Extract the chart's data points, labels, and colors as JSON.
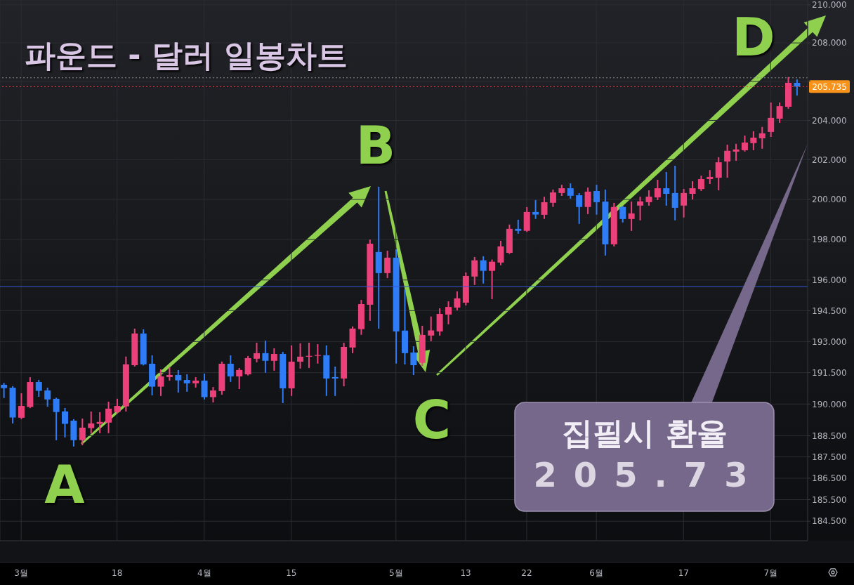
{
  "chart_data": {
    "type": "candlestick",
    "title": "파운드 - 달러 일봉차트",
    "categories": [
      null,
      null,
      "3월",
      null,
      null,
      null,
      null,
      null,
      null,
      null,
      null,
      null,
      null,
      "18",
      null,
      null,
      null,
      null,
      null,
      null,
      null,
      null,
      null,
      "4월",
      null,
      null,
      null,
      null,
      null,
      null,
      null,
      null,
      null,
      "15",
      null,
      null,
      null,
      null,
      null,
      null,
      null,
      null,
      null,
      null,
      null,
      "5월",
      null,
      null,
      null,
      null,
      null,
      null,
      null,
      "13",
      null,
      null,
      null,
      null,
      null,
      null,
      "22",
      null,
      null,
      null,
      null,
      null,
      null,
      null,
      "6월",
      null,
      null,
      null,
      null,
      null,
      null,
      null,
      null,
      null,
      "17",
      null,
      null,
      null,
      null,
      null,
      null,
      null,
      null,
      null,
      "7월",
      null,
      null,
      null
    ],
    "ohlc": [
      [
        190.92,
        190.98,
        190.32,
        190.76
      ],
      [
        190.78,
        190.82,
        189.11,
        189.36
      ],
      [
        189.35,
        190.48,
        189.32,
        189.91
      ],
      [
        189.86,
        191.25,
        189.84,
        191.05
      ],
      [
        191.05,
        191.12,
        190.38,
        190.63
      ],
      [
        190.65,
        190.75,
        189.91,
        190.22
      ],
      [
        190.25,
        190.27,
        188.32,
        189.62
      ],
      [
        189.65,
        189.78,
        188.45,
        189.06
      ],
      [
        189.21,
        189.25,
        188.02,
        188.29
      ],
      [
        188.29,
        189.28,
        188.08,
        188.88
      ],
      [
        188.86,
        189.61,
        188.63,
        189.08
      ],
      [
        189.06,
        189.58,
        188.65,
        189.15
      ],
      [
        189.12,
        190.08,
        188.65,
        189.78
      ],
      [
        189.62,
        190.22,
        189.59,
        189.91
      ],
      [
        189.89,
        192.24,
        189.68,
        191.9
      ],
      [
        191.86,
        193.59,
        191.83,
        193.39
      ],
      [
        193.39,
        193.56,
        191.88,
        191.9
      ],
      [
        191.93,
        192.3,
        190.45,
        190.83
      ],
      [
        190.83,
        191.63,
        190.42,
        191.32
      ],
      [
        191.29,
        191.73,
        191.15,
        191.39
      ],
      [
        191.39,
        191.59,
        190.58,
        191.13
      ],
      [
        191.15,
        191.39,
        190.62,
        190.99
      ],
      [
        190.99,
        191.25,
        190.82,
        191.12
      ],
      [
        191.12,
        191.42,
        190.25,
        190.33
      ],
      [
        190.33,
        190.78,
        190.11,
        190.65
      ],
      [
        190.62,
        192.0,
        190.48,
        191.93
      ],
      [
        191.93,
        192.3,
        191.09,
        191.32
      ],
      [
        191.32,
        191.69,
        190.75,
        191.63
      ],
      [
        191.42,
        192.27,
        191.4,
        192.2
      ],
      [
        192.17,
        192.91,
        192.03,
        192.44
      ],
      [
        192.44,
        193.01,
        191.53,
        192.07
      ],
      [
        192.07,
        192.64,
        191.63,
        192.4
      ],
      [
        192.4,
        192.47,
        190.08,
        190.75
      ],
      [
        190.75,
        192.78,
        190.42,
        192.03
      ],
      [
        192.03,
        192.88,
        191.73,
        192.27
      ],
      [
        192.28,
        192.91,
        191.76,
        192.31
      ],
      [
        192.31,
        192.84,
        191.97,
        192.35
      ],
      [
        192.34,
        192.78,
        190.42,
        191.22
      ],
      [
        191.29,
        191.76,
        190.42,
        191.22
      ],
      [
        191.22,
        192.91,
        190.88,
        192.74
      ],
      [
        192.71,
        193.7,
        192.47,
        193.63
      ],
      [
        193.6,
        194.99,
        193.36,
        194.82
      ],
      [
        194.79,
        197.96,
        194.04,
        197.79
      ],
      [
        197.38,
        200.6,
        193.66,
        196.34
      ],
      [
        196.34,
        197.41,
        196.13,
        197.1
      ],
      [
        197.1,
        197.48,
        191.97,
        193.49
      ],
      [
        193.53,
        195.5,
        191.93,
        192.44
      ],
      [
        192.47,
        192.74,
        191.42,
        191.86
      ],
      [
        191.97,
        193.73,
        191.86,
        193.32
      ],
      [
        193.29,
        194.18,
        193.05,
        193.54
      ],
      [
        193.49,
        194.58,
        193.32,
        194.34
      ],
      [
        194.31,
        194.92,
        193.87,
        194.68
      ],
      [
        194.65,
        195.41,
        194.55,
        195.1
      ],
      [
        194.89,
        196.34,
        194.79,
        196.2
      ],
      [
        196.17,
        197.1,
        195.79,
        196.97
      ],
      [
        196.97,
        197.14,
        195.86,
        196.45
      ],
      [
        196.45,
        196.97,
        195.1,
        196.9
      ],
      [
        196.86,
        197.9,
        196.76,
        197.66
      ],
      [
        197.34,
        198.71,
        197.32,
        198.53
      ],
      [
        198.53,
        198.95,
        198.32,
        198.43
      ],
      [
        198.43,
        199.58,
        198.41,
        199.37
      ],
      [
        199.37,
        199.93,
        199.06,
        199.24
      ],
      [
        199.23,
        200.1,
        199.06,
        199.86
      ],
      [
        199.83,
        200.46,
        199.66,
        200.35
      ],
      [
        200.32,
        200.7,
        200.21,
        200.56
      ],
      [
        200.56,
        200.77,
        200.07,
        200.18
      ],
      [
        200.21,
        200.28,
        198.81,
        199.62
      ],
      [
        199.62,
        200.56,
        199.3,
        200.39
      ],
      [
        200.42,
        200.7,
        199.27,
        199.86
      ],
      [
        199.89,
        200.46,
        197.24,
        197.76
      ],
      [
        197.76,
        199.79,
        197.69,
        199.62
      ],
      [
        199.62,
        199.64,
        198.88,
        199.02
      ],
      [
        199.02,
        199.86,
        198.46,
        199.3
      ],
      [
        199.69,
        200.1,
        198.99,
        199.9
      ],
      [
        199.86,
        200.42,
        199.72,
        200.14
      ],
      [
        200.1,
        200.95,
        200.0,
        200.56
      ],
      [
        200.56,
        201.34,
        199.72,
        200.28
      ],
      [
        200.32,
        201.66,
        198.99,
        199.58
      ],
      [
        199.69,
        200.49,
        199.13,
        200.32
      ],
      [
        200.28,
        200.88,
        200.03,
        200.56
      ],
      [
        200.52,
        201.16,
        200.46,
        201.02
      ],
      [
        201.02,
        201.44,
        200.81,
        201.13
      ],
      [
        201.09,
        202.09,
        200.49,
        201.87
      ],
      [
        201.91,
        202.73,
        201.13,
        202.45
      ],
      [
        202.41,
        202.77,
        201.98,
        202.52
      ],
      [
        202.48,
        203.19,
        202.45,
        202.87
      ],
      [
        202.84,
        203.41,
        202.52,
        203.12
      ],
      [
        203.09,
        203.63,
        202.59,
        203.34
      ],
      [
        203.41,
        204.88,
        203.19,
        204.13
      ],
      [
        204.09,
        204.88,
        203.91,
        204.73
      ],
      [
        204.7,
        206.19,
        204.63,
        205.93
      ],
      [
        205.93,
        206.07,
        205.31,
        205.735
      ]
    ],
    "colors": [
      "#2e7cf6",
      "#2e7cf6",
      "#ec407a",
      "#ec407a",
      "#2e7cf6",
      "#2e7cf6",
      "#2e7cf6",
      "#2e7cf6",
      "#2e7cf6",
      "#ec407a",
      "#ec407a",
      "#ec407a",
      "#ec407a",
      "#ec407a",
      "#ec407a",
      "#ec407a",
      "#2e7cf6",
      "#2e7cf6",
      "#ec407a",
      "#ec407a",
      "#2e7cf6",
      "#2e7cf6",
      "#ec407a",
      "#2e7cf6",
      "#ec407a",
      "#ec407a",
      "#2e7cf6",
      "#ec407a",
      "#ec407a",
      "#ec407a",
      "#2e7cf6",
      "#ec407a",
      "#2e7cf6",
      "#ec407a",
      "#ec407a",
      "#ec407a",
      "#ec407a",
      "#2e7cf6",
      "#2e7cf6",
      "#ec407a",
      "#ec407a",
      "#ec407a",
      "#ec407a",
      "#2e7cf6",
      "#ec407a",
      "#2e7cf6",
      "#2e7cf6",
      "#2e7cf6",
      "#ec407a",
      "#ec407a",
      "#ec407a",
      "#ec407a",
      "#ec407a",
      "#ec407a",
      "#ec407a",
      "#2e7cf6",
      "#ec407a",
      "#ec407a",
      "#ec407a",
      "#2e7cf6",
      "#ec407a",
      "#2e7cf6",
      "#ec407a",
      "#ec407a",
      "#ec407a",
      "#2e7cf6",
      "#2e7cf6",
      "#ec407a",
      "#2e7cf6",
      "#2e7cf6",
      "#ec407a",
      "#2e7cf6",
      "#ec407a",
      "#ec407a",
      "#ec407a",
      "#ec407a",
      "#2e7cf6",
      "#2e7cf6",
      "#ec407a",
      "#ec407a",
      "#ec407a",
      "#ec407a",
      "#ec407a",
      "#ec407a",
      "#ec407a",
      "#ec407a",
      "#ec407a",
      "#ec407a",
      "#ec407a",
      "#ec407a",
      "#ec407a",
      "#2e7cf6"
    ],
    "ylim": [
      183.6,
      210.25
    ],
    "yticks": [
      {
        "value": 184.5,
        "label": "184.500"
      },
      {
        "value": 185.5,
        "label": "185.500"
      },
      {
        "value": 186.5,
        "label": "186.500"
      },
      {
        "value": 187.5,
        "label": "187.500"
      },
      {
        "value": 188.5,
        "label": "188.500"
      },
      {
        "value": 190,
        "label": "190.000"
      },
      {
        "value": 191.5,
        "label": "191.500"
      },
      {
        "value": 193,
        "label": "193.000"
      },
      {
        "value": 194.5,
        "label": "194.500"
      },
      {
        "value": 196,
        "label": "196.000"
      },
      {
        "value": 198,
        "label": "198.000"
      },
      {
        "value": 200,
        "label": "200.000"
      },
      {
        "value": 202,
        "label": "202.000"
      },
      {
        "value": 204,
        "label": "204.000"
      },
      {
        "value": 206,
        "label": null
      },
      {
        "value": 208,
        "label": "208.000"
      },
      {
        "value": 210,
        "label": "210.000"
      }
    ],
    "log": true,
    "grid": true,
    "ref_lines": [
      {
        "axis": "y",
        "value": 205.735,
        "label": "205.735",
        "color": "#f23645",
        "line_style": "dotted"
      },
      {
        "axis": "y",
        "value": 206.19,
        "color": "#8a8d96",
        "line_style": "dotted"
      },
      {
        "axis": "y",
        "value": 195.68,
        "color": "#3556d8",
        "line_style": "solid"
      }
    ],
    "annotations": [
      "A",
      "B",
      "C",
      "D",
      "집필시 환율",
      "205.73"
    ]
  }
}
